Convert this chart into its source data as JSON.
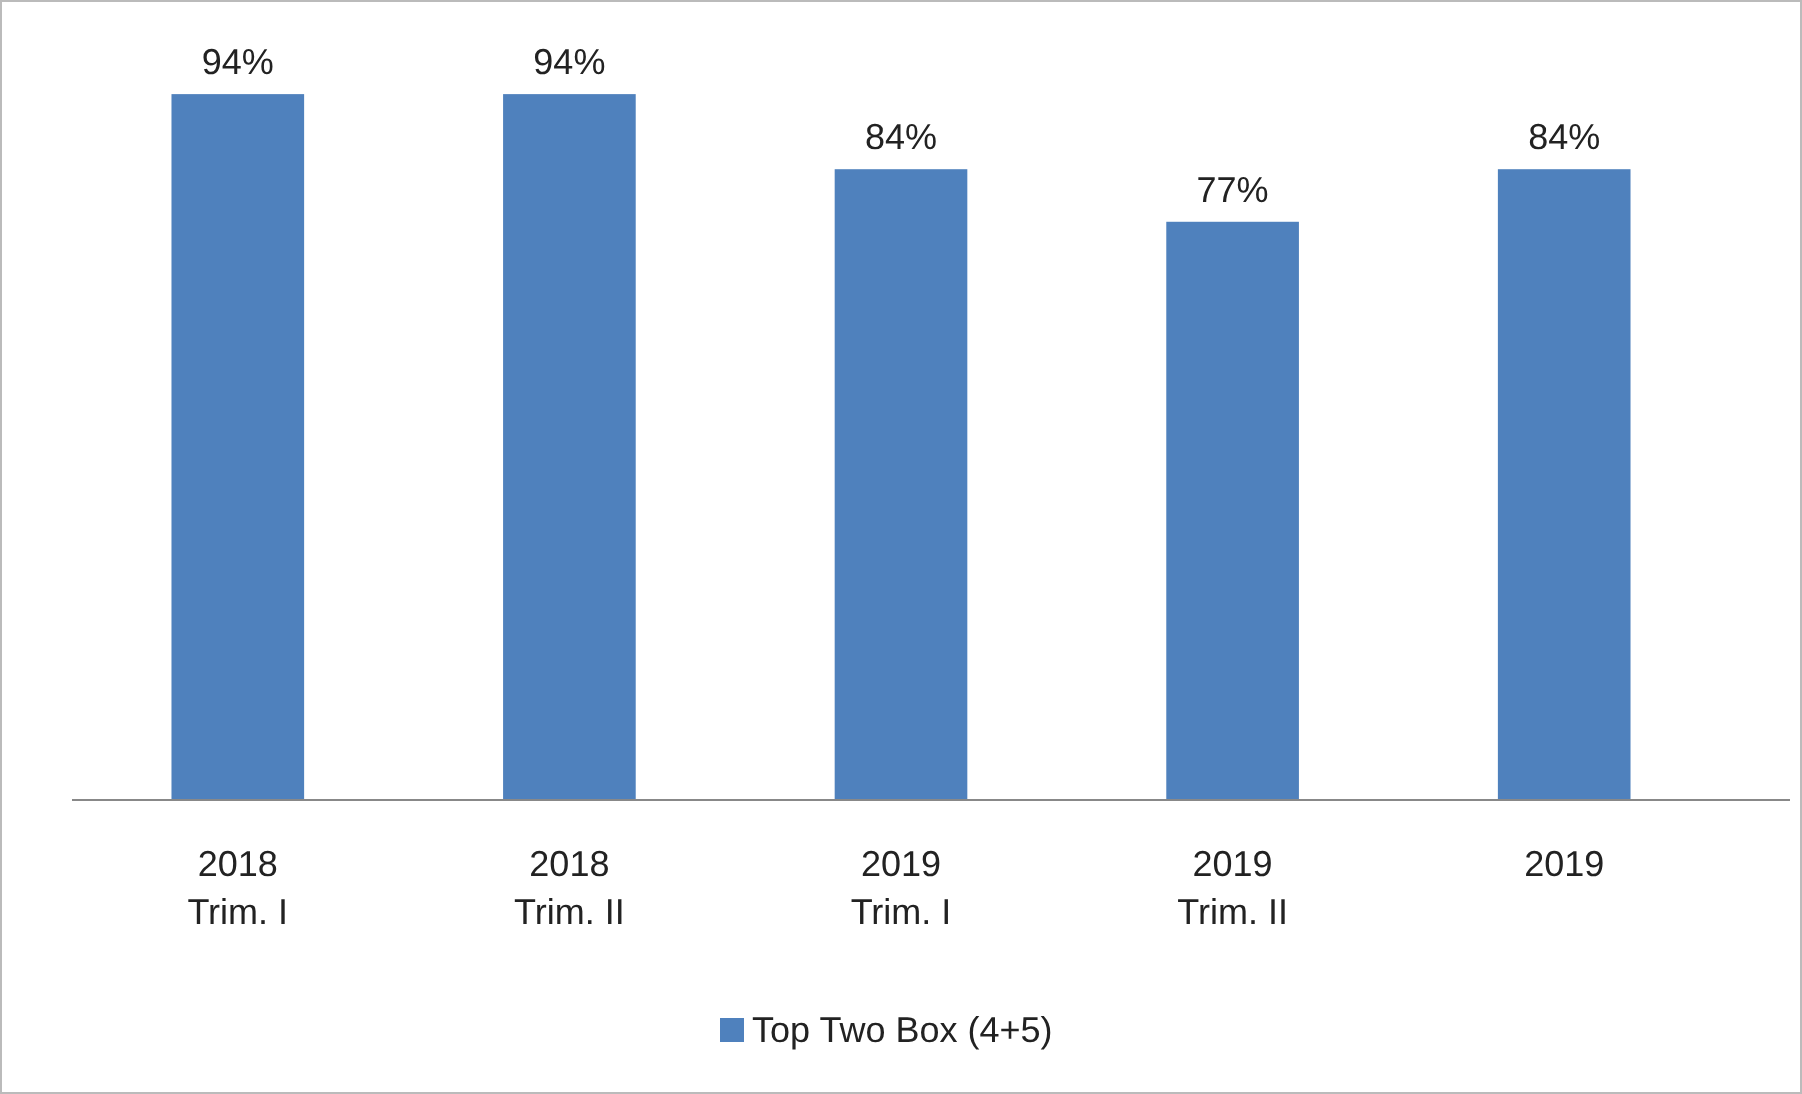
{
  "chart_data": {
    "type": "bar",
    "categories": [
      "2018\nTrim. I",
      "2018\nTrim. II",
      "2019\nTrim. I",
      "2019\nTrim. II",
      "2019"
    ],
    "series": [
      {
        "name": "Top Two Box (4+5)",
        "color": "#4f81bd",
        "values": [
          94,
          94,
          84,
          77,
          84
        ],
        "value_labels": [
          "94%",
          "94%",
          "84%",
          "77%",
          "84%"
        ]
      }
    ],
    "legend": "bottom",
    "grid": false
  }
}
